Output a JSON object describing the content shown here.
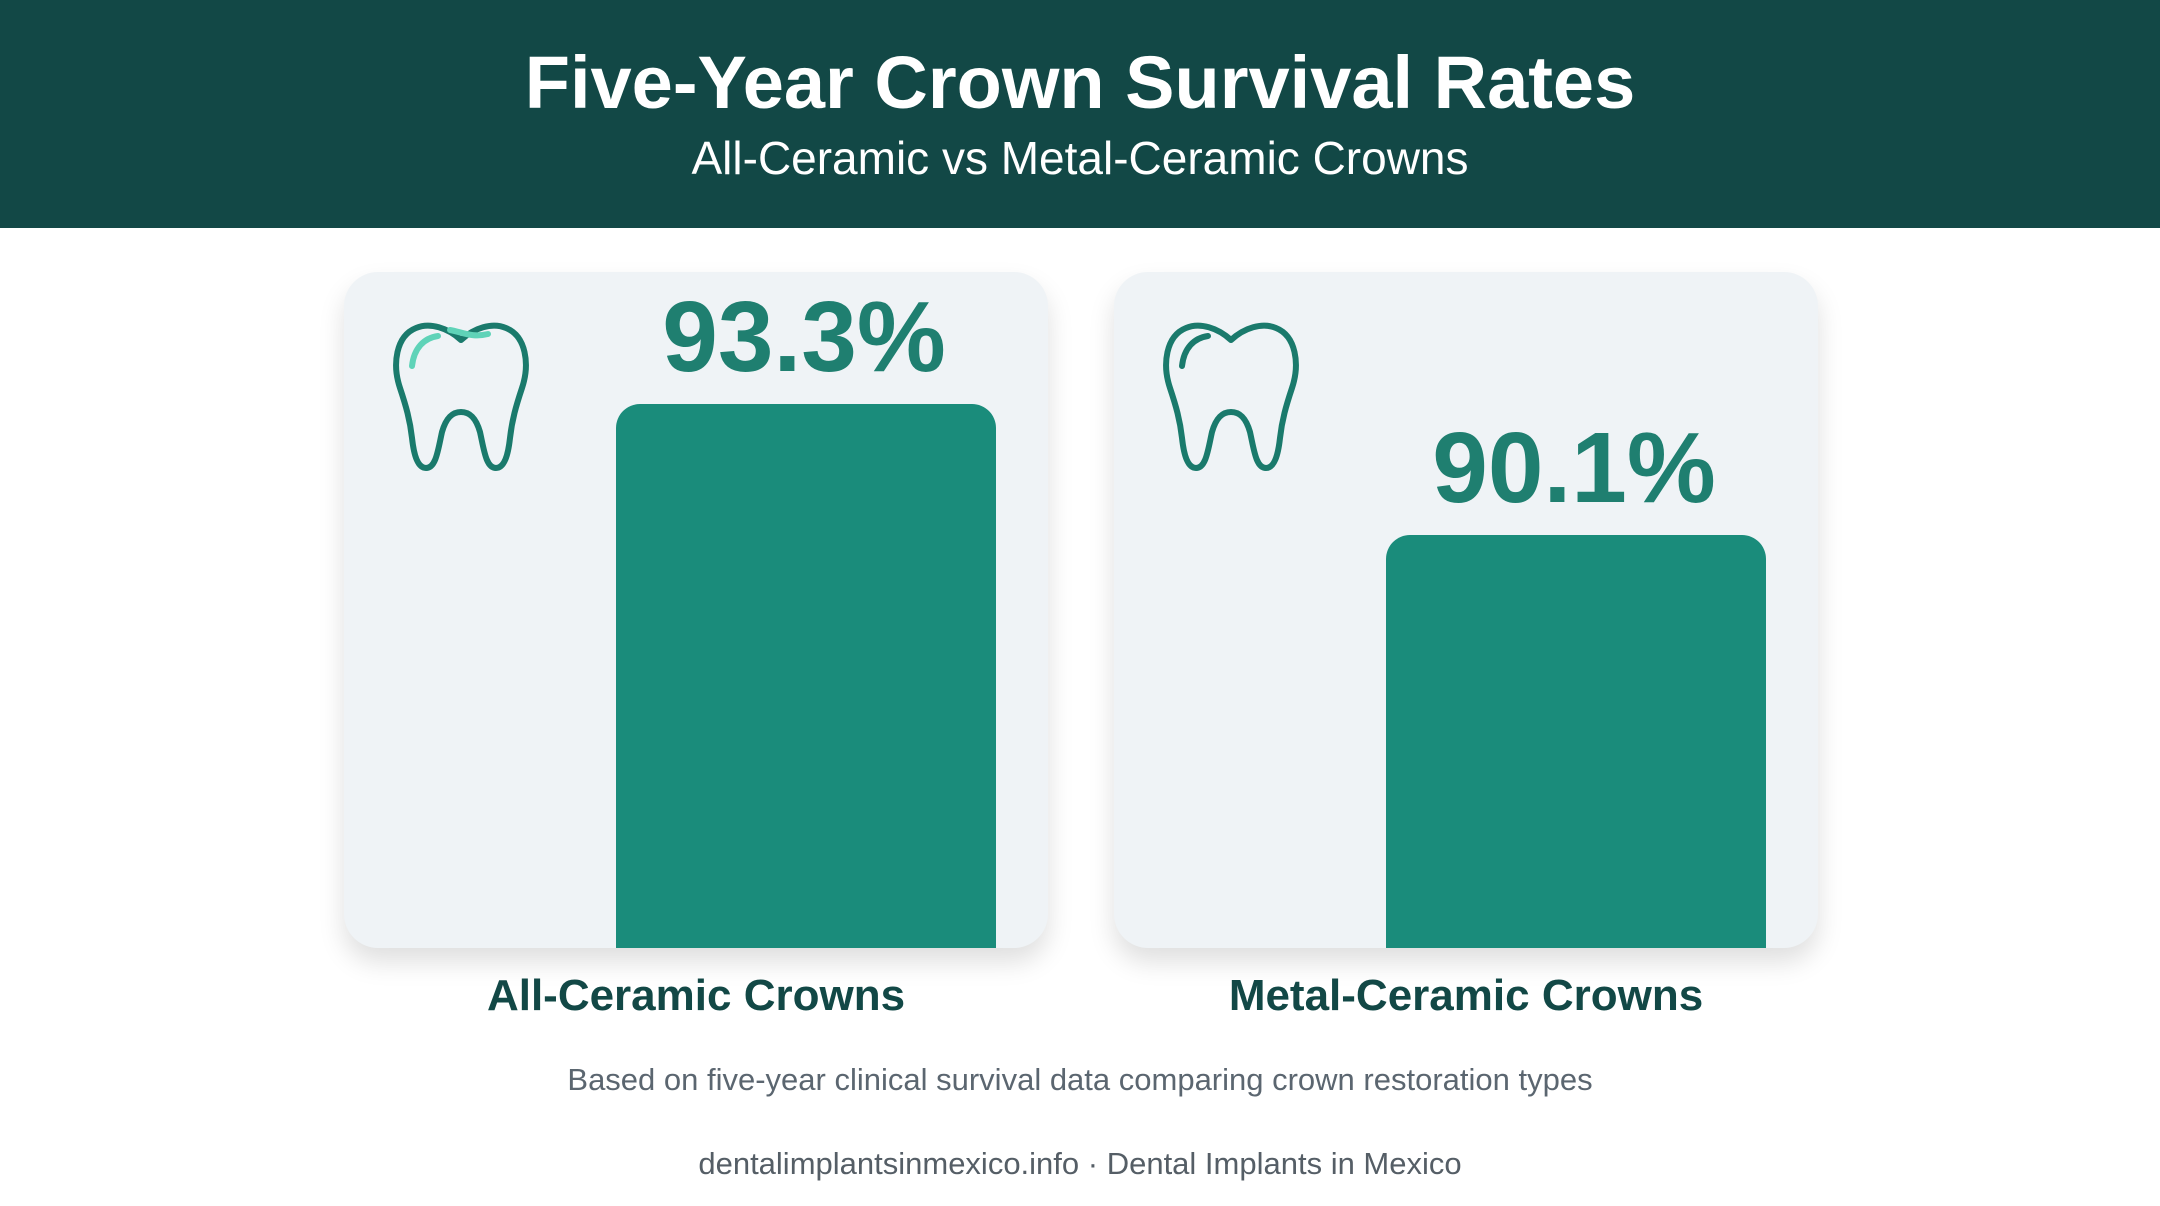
{
  "header": {
    "title": "Five-Year Crown Survival Rates",
    "subtitle": "All-Ceramic vs Metal-Ceramic Crowns"
  },
  "chart_data": {
    "type": "bar",
    "title": "Five-Year Crown Survival Rates",
    "subtitle": "All-Ceramic vs Metal-Ceramic Crowns",
    "categories": [
      "All-Ceramic Crowns",
      "Metal-Ceramic Crowns"
    ],
    "values": [
      93.3,
      90.1
    ],
    "value_labels": [
      "93.3%",
      "90.1%"
    ],
    "unit": "%",
    "ylim": [
      0,
      100
    ],
    "grid": false,
    "legend": "none",
    "bar_color": "#1a8c7b"
  },
  "icons": [
    "tooth-icon",
    "tooth-icon"
  ],
  "colors": {
    "header_bg": "#124846",
    "accent": "#1a8c7b",
    "label_text": "#124846",
    "card_bg": "#eff3f6"
  },
  "footnote": "Based on five-year clinical survival data comparing crown restoration types",
  "source": "dentalimplantsinmexico.info · Dental Implants in Mexico"
}
